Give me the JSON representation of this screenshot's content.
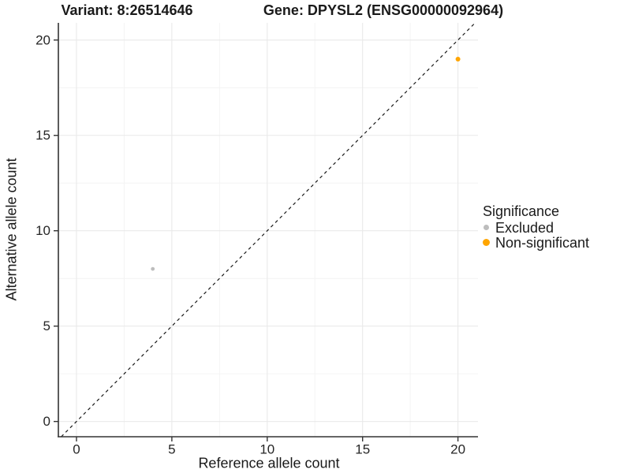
{
  "chart_data": {
    "type": "scatter",
    "titles": {
      "left": "Variant: 8:26514646",
      "right": "Gene: DPYSL2 (ENSG00000092964)"
    },
    "xlabel": "Reference allele count",
    "ylabel": "Alternative allele count",
    "xlim": [
      -0.95,
      21.05
    ],
    "ylim": [
      -0.8,
      20.9
    ],
    "x_ticks": [
      "0",
      "5",
      "10",
      "15",
      "20"
    ],
    "y_ticks": [
      "0",
      "5",
      "10",
      "15",
      "20"
    ],
    "x_tick_values": [
      0,
      5,
      10,
      15,
      20
    ],
    "y_tick_values": [
      0,
      5,
      10,
      15,
      20
    ],
    "x_minor_values": [
      2.5,
      7.5,
      12.5,
      17.5
    ],
    "y_minor_values": [
      2.5,
      7.5,
      12.5,
      17.5
    ],
    "grid": "major+minor",
    "identity_line": {
      "slope": 1,
      "intercept": 0,
      "style": "dashed",
      "color": "#1a1a1a"
    },
    "series": [
      {
        "name": "Excluded",
        "color": "#bdbdbd",
        "radius_px": 2.4,
        "points": [
          {
            "x": 4,
            "y": 8
          }
        ]
      },
      {
        "name": "Non-significant",
        "color": "#ffa500",
        "radius_px": 3.0,
        "points": [
          {
            "x": 20,
            "y": 19
          }
        ]
      }
    ],
    "legend": {
      "title": "Significance",
      "position": "right",
      "entries": [
        {
          "label": "Excluded",
          "color": "#bdbdbd"
        },
        {
          "label": "Non-significant",
          "color": "#ffa500"
        }
      ]
    }
  },
  "colors": {
    "background": "#ffffff",
    "axis": "#333333",
    "grid_major": "#e9e9e9",
    "grid_minor": "#f4f4f4",
    "text": "#1a1a1a",
    "tick_text": "#262626"
  }
}
